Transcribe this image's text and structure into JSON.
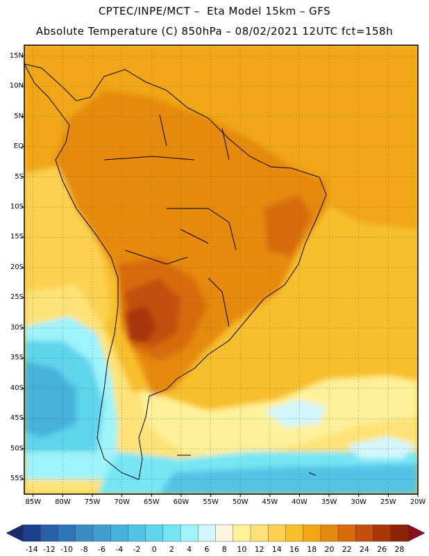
{
  "header": {
    "line1": "CPTEC/INPE/MCT –  Eta Model 15km – GFS",
    "line2": "Absolute Temperature (C) 850hPa – 08/02/2021 12UTC fct=158h"
  },
  "map": {
    "lat_labels": [
      "15N",
      "10N",
      "5N",
      "EQ",
      "5S",
      "10S",
      "15S",
      "20S",
      "25S",
      "30S",
      "35S",
      "40S",
      "45S",
      "50S",
      "55S"
    ],
    "lon_labels": [
      "85W",
      "80W",
      "75W",
      "70W",
      "65W",
      "60W",
      "55W",
      "50W",
      "45W",
      "40W",
      "35W",
      "30W",
      "25W",
      "20W"
    ],
    "extent": {
      "lon_min": -86.5,
      "lon_max": -20.0,
      "lat_min": -57.5,
      "lat_max": 16.8
    }
  },
  "colorbar": {
    "labels": [
      "-14",
      "-12",
      "-10",
      "-8",
      "-6",
      "-4",
      "-2",
      "0",
      "2",
      "4",
      "6",
      "8",
      "10",
      "12",
      "14",
      "16",
      "18",
      "20",
      "22",
      "24",
      "26",
      "28"
    ],
    "colors": [
      "#1c3f8c",
      "#2a5ea8",
      "#2f76b9",
      "#3a8bc6",
      "#3f9dcf",
      "#46b1db",
      "#52c3e4",
      "#5ed5ec",
      "#76e6f4",
      "#9ff3fa",
      "#d2f6fb",
      "#fff6e0",
      "#fff09a",
      "#ffe277",
      "#fbd14f",
      "#f7be2e",
      "#f0a615",
      "#e58a10",
      "#d86c0c",
      "#c24f0a",
      "#a93508",
      "#8c2206"
    ],
    "out_low_color": "#1a2a6c",
    "out_high_color": "#8a0f1e"
  }
}
